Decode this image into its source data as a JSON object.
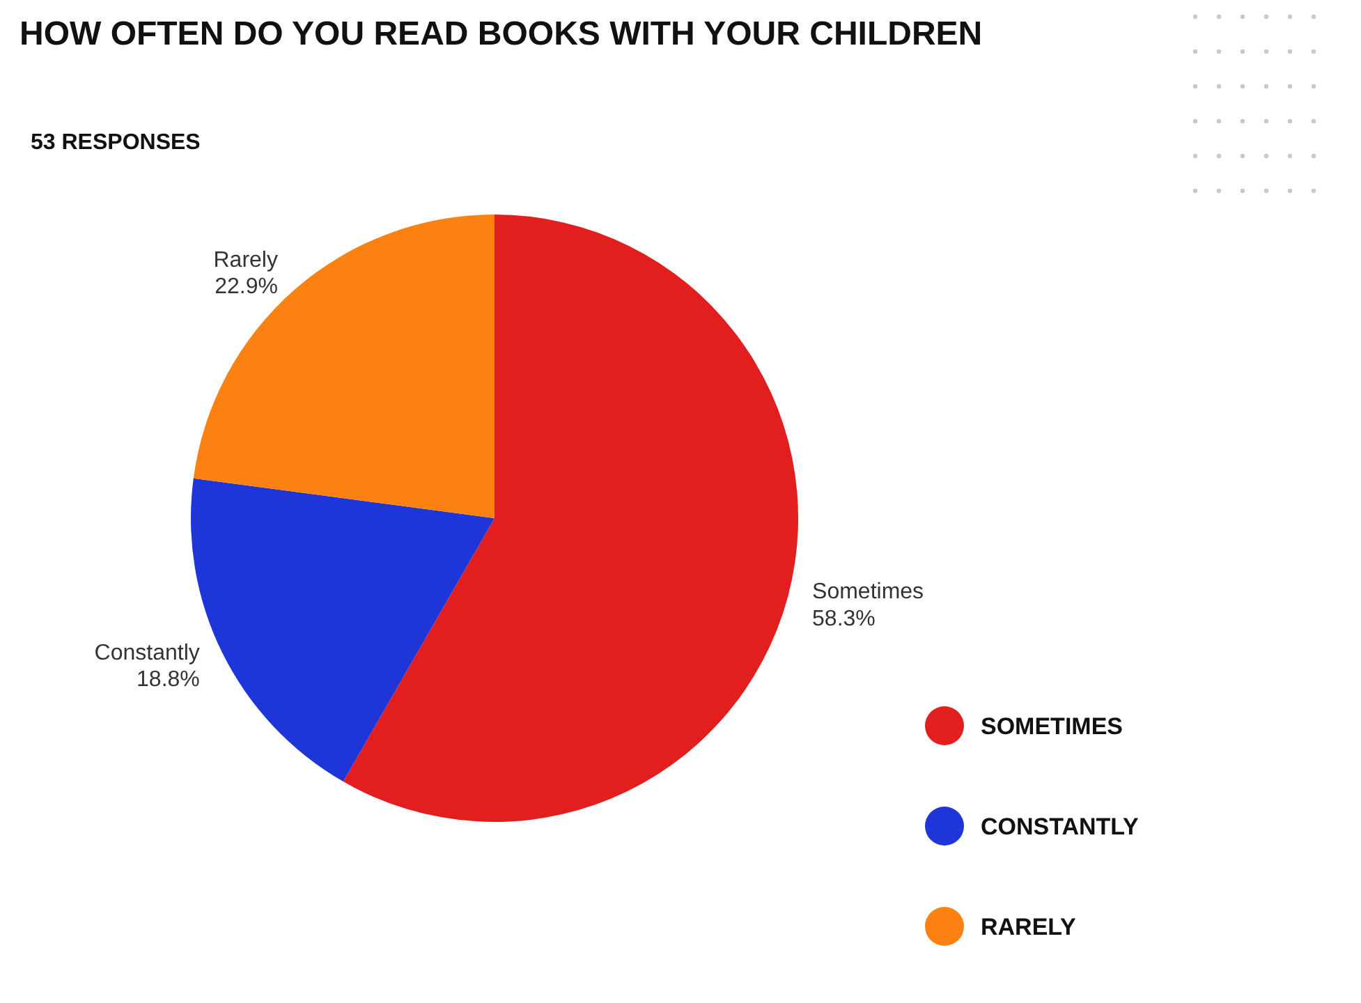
{
  "chart_data": {
    "type": "pie",
    "title": "HOW OFTEN DO YOU READ BOOKS WITH YOUR CHILDREN",
    "subtitle": "53 RESPONSES",
    "categories": [
      "SOMETIMES",
      "CONSTANTLY",
      "RARELY"
    ],
    "values": [
      58.3,
      18.8,
      22.9
    ],
    "value_labels": [
      "58.3%",
      "18.8%",
      "22.9%"
    ],
    "annotations": [
      "Sometimes",
      "Constantly",
      "Rarely"
    ],
    "colors": [
      "#e31e1e",
      "#1e35d8",
      "#fb8113"
    ],
    "legend": "bottom right"
  }
}
